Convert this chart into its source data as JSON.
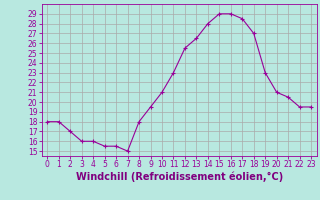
{
  "x": [
    0,
    1,
    2,
    3,
    4,
    5,
    6,
    7,
    8,
    9,
    10,
    11,
    12,
    13,
    14,
    15,
    16,
    17,
    18,
    19,
    20,
    21,
    22,
    23
  ],
  "y": [
    18,
    18,
    17,
    16,
    16,
    15.5,
    15.5,
    15,
    18,
    19.5,
    21,
    23,
    25.5,
    26.5,
    28,
    29,
    29,
    28.5,
    27,
    23,
    21,
    20.5,
    19.5,
    19.5
  ],
  "line_color": "#990099",
  "marker": "+",
  "bg_color": "#b8e8e0",
  "grid_color": "#aaaaaa",
  "xlabel": "Windchill (Refroidissement éolien,°C)",
  "xlabel_color": "#800080",
  "ylabel_ticks": [
    15,
    16,
    17,
    18,
    19,
    20,
    21,
    22,
    23,
    24,
    25,
    26,
    27,
    28,
    29
  ],
  "ylim": [
    14.5,
    30
  ],
  "xlim": [
    -0.5,
    23.5
  ],
  "xticks": [
    0,
    1,
    2,
    3,
    4,
    5,
    6,
    7,
    8,
    9,
    10,
    11,
    12,
    13,
    14,
    15,
    16,
    17,
    18,
    19,
    20,
    21,
    22,
    23
  ],
  "tick_fontsize": 5.5,
  "xlabel_fontsize": 7
}
